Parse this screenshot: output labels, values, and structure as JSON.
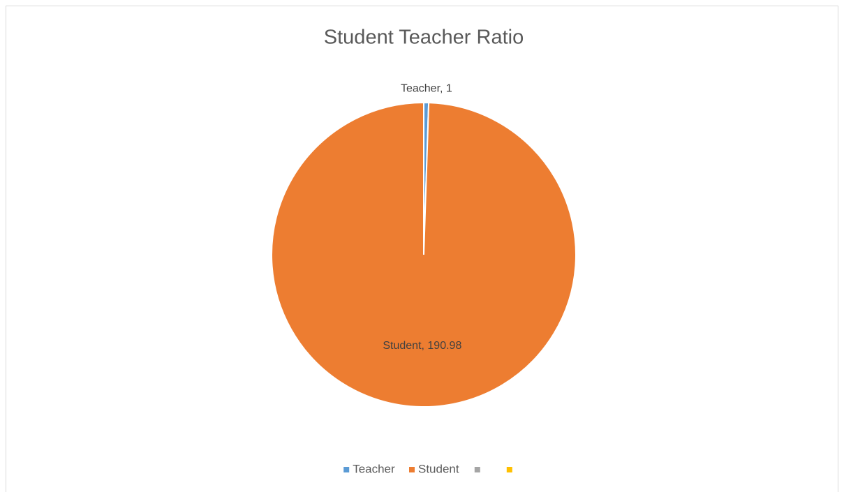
{
  "chart_data": {
    "type": "pie",
    "title": "Student Teacher Ratio",
    "categories": [
      "Teacher",
      "Student",
      null,
      null
    ],
    "values": [
      1,
      190.98,
      null,
      null
    ],
    "value_labels": [
      "Teacher, 1",
      "Student, 190.98",
      null,
      null
    ],
    "colors": [
      "#5b9bd5",
      "#ed7d31",
      "#a5a5a5",
      "#ffc000"
    ],
    "legend": "bottom"
  }
}
